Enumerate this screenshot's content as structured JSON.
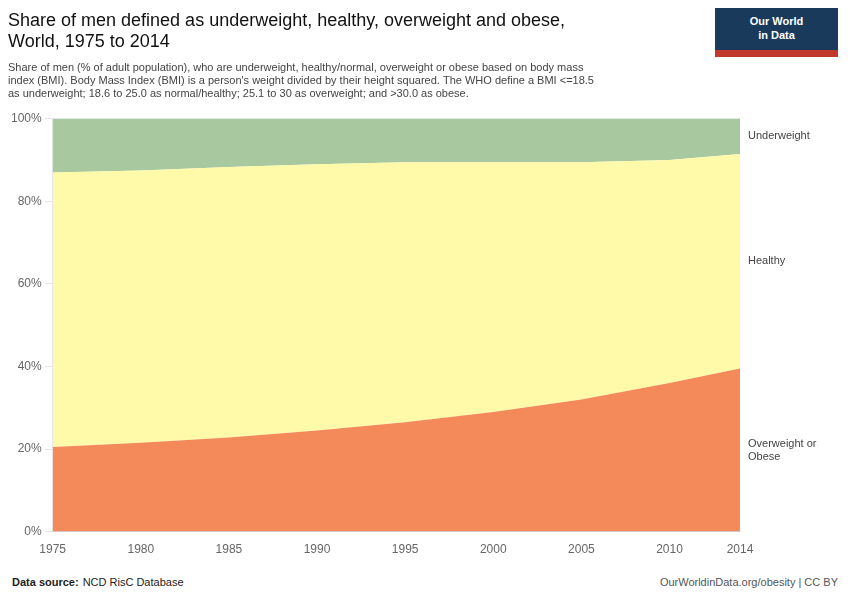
{
  "chart_data": {
    "type": "area",
    "stacked": true,
    "title": "Share of men defined as underweight, healthy, overweight and obese,\nWorld, 1975 to 2014",
    "subtitle": "Share of men (% of adult population), who are underweight, healthy/normal, overweight or obese based on body mass\nindex (BMI). Body Mass Index (BMI) is a person's weight divided by their height squared. The WHO define a BMI <=18.5\nas underweight; 18.6 to 25.0 as normal/healthy; 25.1 to 30 as overweight; and >30.0 as obese.",
    "x": [
      1975,
      1980,
      1985,
      1990,
      1995,
      2000,
      2005,
      2010,
      2014
    ],
    "xlim": [
      1975,
      2014
    ],
    "xticks": [
      1975,
      1980,
      1985,
      1990,
      1995,
      2000,
      2005,
      2010,
      2014
    ],
    "ylim": [
      0,
      100
    ],
    "yticks": [
      {
        "value": 0,
        "label": "0%"
      },
      {
        "value": 20,
        "label": "20%"
      },
      {
        "value": 40,
        "label": "40%"
      },
      {
        "value": 60,
        "label": "60%"
      },
      {
        "value": 80,
        "label": "80%"
      },
      {
        "value": 100,
        "label": "100%"
      }
    ],
    "grid": "y",
    "series": [
      {
        "name": "Overweight or\nObese",
        "color": "#F4895A",
        "values": [
          20.5,
          21.5,
          22.8,
          24.5,
          26.5,
          29.0,
          32.0,
          36.0,
          39.5
        ]
      },
      {
        "name": "Healthy",
        "color": "#FFFAAA",
        "values": [
          66.5,
          66.0,
          65.5,
          64.5,
          63.0,
          60.5,
          57.5,
          54.0,
          52.0
        ]
      },
      {
        "name": "Underweight",
        "color": "#A8C8A0",
        "values": [
          13.0,
          12.5,
          11.7,
          11.0,
          10.5,
          10.5,
          10.5,
          10.0,
          8.5
        ]
      }
    ],
    "footer": {
      "source_label": "Data source:",
      "source": "NCD RisC Database",
      "credit": "OurWorldinData.org/obesity | CC BY"
    },
    "logo": {
      "text": "Our World\nin Data",
      "color": "#1a3a5c",
      "bar_color": "#C0392B"
    }
  }
}
